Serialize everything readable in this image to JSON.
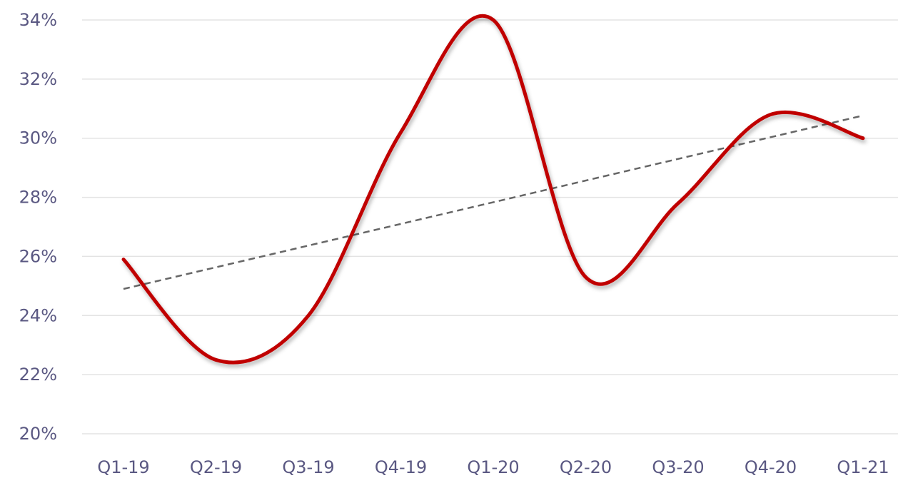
{
  "chart_data": {
    "type": "line",
    "title": "",
    "xlabel": "",
    "ylabel": "",
    "categories": [
      "Q1-19",
      "Q2-19",
      "Q3-19",
      "Q4-19",
      "Q1-20",
      "Q2-20",
      "Q3-20",
      "Q4-20",
      "Q1-21"
    ],
    "series": [
      {
        "values": [
          25.9,
          22.5,
          24.0,
          30.2,
          34.0,
          25.3,
          27.8,
          30.8,
          30.0
        ],
        "color": "#c00000"
      }
    ],
    "trendline": {
      "type": "linear",
      "style": "dashed",
      "color": "#666666"
    },
    "ylim": [
      20,
      34
    ],
    "yticks": [
      "20%",
      "22%",
      "24%",
      "26%",
      "28%",
      "30%",
      "32%",
      "34%"
    ],
    "ytick_values": [
      20,
      22,
      24,
      26,
      28,
      30,
      32,
      34
    ],
    "grid": true,
    "legend": "none"
  }
}
